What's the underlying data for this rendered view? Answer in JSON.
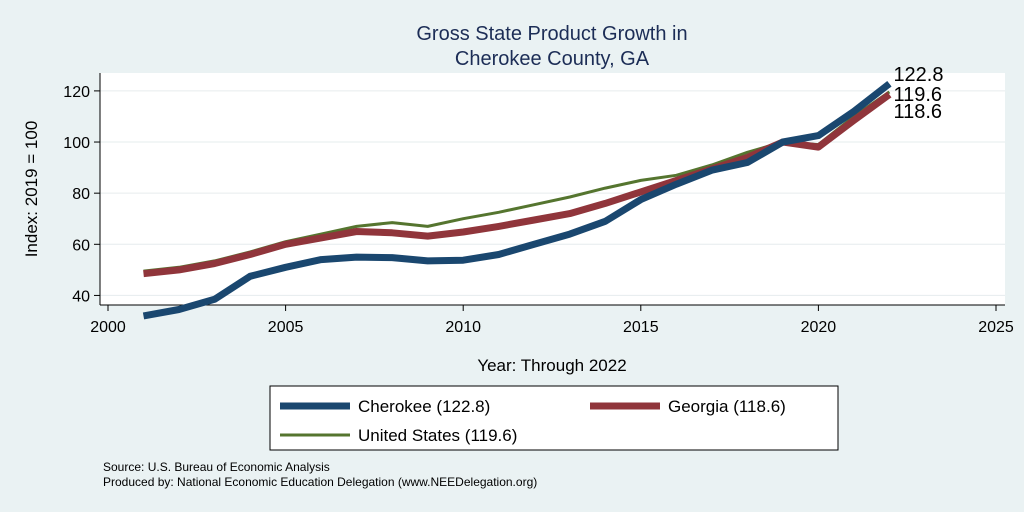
{
  "chart_data": {
    "type": "line",
    "title_lines": [
      "Gross State Product Growth in",
      "Cherokee County, GA"
    ],
    "xlabel": "Year: Through 2022",
    "ylabel": "Index: 2019 = 100",
    "xlim": [
      2000,
      2025
    ],
    "ylim": [
      30,
      127
    ],
    "xticks": [
      2000,
      2005,
      2010,
      2015,
      2020,
      2025
    ],
    "yticks": [
      40,
      60,
      80,
      100,
      120
    ],
    "grid": "horizontal",
    "x": [
      2001,
      2002,
      2003,
      2004,
      2005,
      2006,
      2007,
      2008,
      2009,
      2010,
      2011,
      2012,
      2013,
      2014,
      2015,
      2016,
      2017,
      2018,
      2019,
      2020,
      2021,
      2022
    ],
    "series": [
      {
        "name": "Cherokee",
        "color": "#1a476f",
        "stroke": "thick",
        "values": [
          32,
          34.5,
          38.5,
          47.5,
          51,
          54,
          55,
          54.8,
          53.5,
          53.8,
          56,
          60,
          64,
          69,
          77.5,
          83.5,
          89,
          92,
          100,
          102.5,
          112,
          122.8
        ],
        "end_label": "122.8"
      },
      {
        "name": "Georgia",
        "color": "#90353b",
        "stroke": "thick",
        "values": [
          48.5,
          50,
          52.5,
          56,
          60,
          62.5,
          65,
          64.5,
          63.2,
          64.8,
          67,
          69.5,
          72,
          76,
          80.5,
          85,
          89.5,
          94,
          100,
          98,
          108.5,
          118.6
        ],
        "end_label": "118.6"
      },
      {
        "name": "United States",
        "color": "#55752f",
        "stroke": "thin",
        "values": [
          49.5,
          51,
          53.5,
          57,
          61,
          64,
          67,
          68.5,
          67,
          70,
          72.5,
          75.5,
          78.5,
          82,
          85,
          87,
          91,
          96,
          100,
          99,
          110,
          119.6
        ],
        "end_label": "119.6"
      }
    ],
    "legend": {
      "placement": "bottom",
      "entries": [
        "Cherokee  (122.8)",
        "Georgia (118.6)",
        "United States (119.6)"
      ]
    },
    "notes": [
      "Source: U.S. Bureau of Economic Analysis",
      "Produced by: National Economic Education Delegation (www.NEEDelegation.org)"
    ]
  }
}
